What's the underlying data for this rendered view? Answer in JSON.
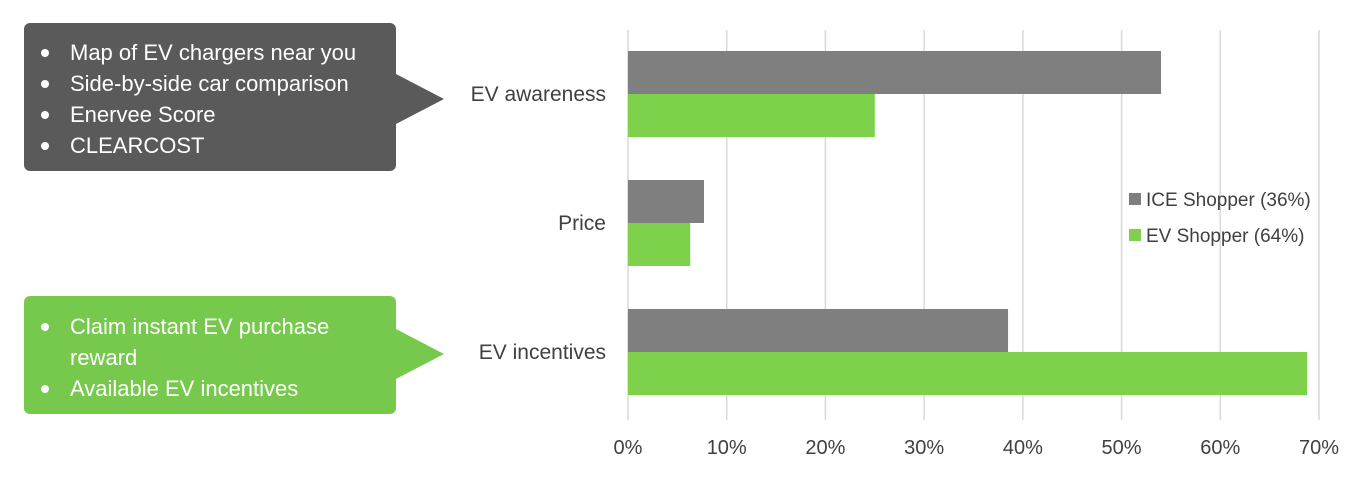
{
  "callouts": {
    "grey": {
      "items": [
        "Map of EV chargers near you",
        "Side-by-side car comparison",
        "Enervee Score",
        "CLEARCOST"
      ],
      "color": "#5a5a5a"
    },
    "green": {
      "items": [
        "Claim instant EV purchase reward",
        "Available EV incentives"
      ],
      "color": "#76c94d"
    }
  },
  "chart_data": {
    "type": "bar",
    "orientation": "horizontal",
    "categories": [
      "EV awareness",
      "Price",
      "EV incentives"
    ],
    "series": [
      {
        "name": "ICE Shopper (36%)",
        "values": [
          54,
          7.7,
          38.5
        ],
        "color": "#7f7f7f"
      },
      {
        "name": "EV Shopper (64%)",
        "values": [
          25,
          6.3,
          68.8
        ],
        "color": "#7ed14a"
      }
    ],
    "x_ticks": [
      "0%",
      "10%",
      "20%",
      "30%",
      "40%",
      "50%",
      "60%",
      "70%"
    ],
    "xlim": [
      0,
      70
    ],
    "grid": "vertical",
    "legend": "right",
    "title": "",
    "xlabel": "",
    "ylabel": ""
  }
}
